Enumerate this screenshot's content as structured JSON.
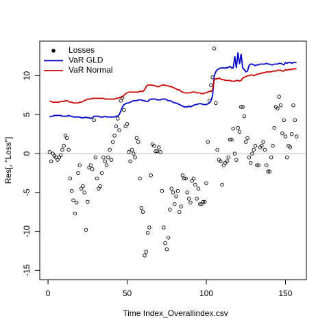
{
  "chart_data": {
    "type": "line",
    "xlabel": "Time Index_Overallindex.csv",
    "ylabel": "Res[, \"Loss\"]",
    "xlim": [
      -5.24,
      163.24
    ],
    "ylim": [
      -16.2,
      14.45
    ],
    "xticks": [
      0,
      50,
      100,
      150
    ],
    "yticks": [
      -15,
      -10,
      -5,
      0,
      5,
      10
    ],
    "hline": 0,
    "hline_color": "#bebebe",
    "legend": "top-left",
    "x": [
      1,
      2,
      3,
      4,
      5,
      6,
      7,
      8,
      9,
      10,
      11,
      12,
      13,
      14,
      15,
      16,
      17,
      18,
      19,
      20,
      21,
      22,
      23,
      24,
      25,
      26,
      27,
      28,
      29,
      30,
      31,
      32,
      33,
      34,
      35,
      36,
      37,
      38,
      39,
      40,
      41,
      42,
      43,
      44,
      45,
      46,
      47,
      48,
      49,
      50,
      51,
      52,
      53,
      54,
      55,
      56,
      57,
      58,
      59,
      60,
      61,
      62,
      63,
      64,
      65,
      66,
      67,
      68,
      69,
      70,
      71,
      72,
      73,
      74,
      75,
      76,
      77,
      78,
      79,
      80,
      81,
      82,
      83,
      84,
      85,
      86,
      87,
      88,
      89,
      90,
      91,
      92,
      93,
      94,
      95,
      96,
      97,
      98,
      99,
      100,
      101,
      102,
      103,
      104,
      105,
      106,
      107,
      108,
      109,
      110,
      111,
      112,
      113,
      114,
      115,
      116,
      117,
      118,
      119,
      120,
      121,
      122,
      123,
      124,
      125,
      126,
      127,
      128,
      129,
      130,
      131,
      132,
      133,
      134,
      135,
      136,
      137,
      138,
      139,
      140,
      141,
      142,
      143,
      144,
      145,
      146,
      147,
      148,
      149,
      150,
      151,
      152,
      153,
      154,
      155,
      156,
      157
    ],
    "series": [
      {
        "name": "Losses",
        "mark": "points",
        "color": "#000000",
        "values": [
          0.2,
          -1.0,
          0,
          -0.3,
          -0.5,
          -0.8,
          -0.5,
          -0.2,
          0.5,
          1.0,
          2.3,
          2.0,
          0.5,
          -3.2,
          -4.8,
          -6.0,
          -7.7,
          -6.3,
          -2.5,
          -1.5,
          -4.5,
          -4.2,
          -5.0,
          -9.8,
          -6.2,
          -1.8,
          -1.5,
          -2.0,
          4.3,
          -0.5,
          -3.2,
          -4.5,
          -4.2,
          -2.5,
          -0.5,
          -1.0,
          -1.5,
          -0.5,
          0.5,
          -0.8,
          1.5,
          2.3,
          3.5,
          4.5,
          3.0,
          6.8,
          7.2,
          5.6,
          3.5,
          3.8,
          0.2,
          -1.0,
          0.5,
          0.0,
          -0.5,
          2.0,
          1.5,
          -3.2,
          -7.0,
          -7.5,
          -13.1,
          -12.6,
          -10.2,
          -9.5,
          -2.8,
          1.2,
          1.0,
          0.3,
          0.3,
          0.8,
          0.2,
          -4.8,
          -9.5,
          -11.5,
          -12.3,
          -10.8,
          -7.2,
          -4.5,
          -5.0,
          -6.5,
          -5.5,
          -4.8,
          -7.5,
          -6.8,
          -2.8,
          -3.2,
          -3.2,
          -5.0,
          -5.8,
          -6.3,
          -3.5,
          -3.2,
          -4.0,
          -5.8,
          -4.5,
          -6.5,
          -6.5,
          -6.2,
          -6.2,
          -3.8,
          1.5,
          6.8,
          8.8,
          9.8,
          13.5,
          6.5,
          0.5,
          -0.8,
          -1.0,
          -4.0,
          -1.5,
          -1.2,
          -1.0,
          -0.5,
          1.8,
          1.8,
          3.2,
          0.0,
          -0.8,
          3.3,
          2.8,
          6.0,
          6.0,
          4.8,
          1.5,
          2.0,
          -0.5,
          -1.2,
          0.0,
          0.5,
          1.0,
          -1.5,
          -1.5,
          0.8,
          1.0,
          1.5,
          0.5,
          -1.5,
          -2.3,
          -2.3,
          -0.5,
          1.0,
          3.3,
          6.0,
          5.8,
          7.3,
          6.2,
          2.6,
          4.3,
          2.2,
          -0.5,
          1.0,
          0.8,
          2.5,
          6.2,
          4.3,
          2.2
        ]
      },
      {
        "name": "VaR GLD",
        "mark": "line",
        "color": "#0000cd",
        "values": [
          4.7,
          4.8,
          4.8,
          4.9,
          4.9,
          4.9,
          4.9,
          4.9,
          4.8,
          4.8,
          4.8,
          4.8,
          4.9,
          4.8,
          4.8,
          4.7,
          4.7,
          4.7,
          4.7,
          4.7,
          4.6,
          4.6,
          4.6,
          4.7,
          4.6,
          4.6,
          4.5,
          4.6,
          4.8,
          4.8,
          4.8,
          4.8,
          4.7,
          4.7,
          4.7,
          4.8,
          4.7,
          4.7,
          4.7,
          4.7,
          4.7,
          4.7,
          4.8,
          4.8,
          5.0,
          5.5,
          6.0,
          6.3,
          6.4,
          6.5,
          6.5,
          6.6,
          6.7,
          6.8,
          6.8,
          6.8,
          6.9,
          6.9,
          6.9,
          6.8,
          6.8,
          6.7,
          6.7,
          6.9,
          7.0,
          7.0,
          7.0,
          7.0,
          6.9,
          6.9,
          6.9,
          7.0,
          7.0,
          7.0,
          6.9,
          6.8,
          6.8,
          6.7,
          6.6,
          6.5,
          6.5,
          6.4,
          6.3,
          6.2,
          6.1,
          6.0,
          6.0,
          6.0,
          6.1,
          6.0,
          6.1,
          6.2,
          6.3,
          6.3,
          6.4,
          6.4,
          6.4,
          6.3,
          6.3,
          6.3,
          6.4,
          6.5,
          6.8,
          7.5,
          10.0,
          10.5,
          10.8,
          10.9,
          11.0,
          11.0,
          11.0,
          11.0,
          11.0,
          11.1,
          11.2,
          11.0,
          11.0,
          12.5,
          11.0,
          13.0,
          11.5,
          12.8,
          11.0,
          10.8,
          10.5,
          10.6,
          11.3,
          11.5,
          11.5,
          11.4,
          11.3,
          11.4,
          11.4,
          11.5,
          11.5,
          11.5,
          11.5,
          11.6,
          11.5,
          11.5,
          11.4,
          11.4,
          11.5,
          11.5,
          11.5,
          11.6,
          11.6,
          11.5,
          11.4,
          11.7,
          11.6,
          11.7,
          11.7,
          11.6,
          11.7,
          11.7,
          11.7
        ]
      },
      {
        "name": "VaR Normal",
        "mark": "line",
        "color": "#cd0000",
        "values": [
          6.7,
          6.7,
          6.6,
          6.6,
          6.6,
          6.6,
          6.6,
          6.7,
          6.7,
          6.7,
          6.8,
          6.8,
          6.7,
          6.6,
          6.6,
          6.5,
          6.5,
          6.5,
          6.5,
          6.6,
          6.6,
          6.7,
          6.8,
          6.9,
          7.0,
          7.0,
          7.0,
          7.1,
          7.1,
          7.1,
          7.1,
          7.1,
          7.1,
          7.1,
          7.1,
          7.0,
          7.0,
          7.0,
          7.0,
          7.0,
          7.0,
          7.0,
          7.1,
          7.1,
          7.2,
          7.2,
          7.3,
          7.5,
          7.7,
          7.8,
          7.9,
          7.9,
          7.9,
          7.9,
          7.9,
          7.9,
          7.9,
          8.0,
          8.0,
          8.0,
          8.2,
          8.6,
          8.8,
          8.8,
          8.8,
          8.8,
          8.7,
          8.7,
          8.6,
          8.6,
          8.7,
          8.8,
          8.8,
          8.8,
          8.7,
          8.7,
          8.6,
          8.6,
          8.5,
          8.4,
          8.3,
          8.2,
          8.2,
          8.0,
          7.9,
          7.8,
          7.8,
          7.8,
          7.8,
          7.8,
          7.9,
          7.9,
          7.9,
          7.8,
          7.8,
          7.8,
          7.7,
          7.7,
          7.8,
          7.8,
          7.9,
          8.0,
          8.0,
          8.2,
          9.5,
          9.6,
          9.6,
          9.7,
          9.6,
          9.5,
          9.5,
          9.4,
          9.4,
          9.4,
          9.4,
          9.3,
          9.3,
          9.3,
          9.4,
          9.4,
          9.3,
          9.4,
          9.7,
          9.8,
          9.9,
          10.0,
          10.0,
          10.1,
          10.1,
          10.0,
          10.1,
          10.2,
          10.2,
          10.3,
          10.3,
          10.4,
          10.4,
          10.5,
          10.5,
          10.5,
          10.5,
          10.6,
          10.6,
          10.6,
          10.7,
          10.7,
          10.7,
          10.6,
          10.6,
          10.8,
          10.7,
          10.8,
          10.8,
          10.8,
          10.9,
          10.9,
          10.9
        ]
      }
    ]
  }
}
